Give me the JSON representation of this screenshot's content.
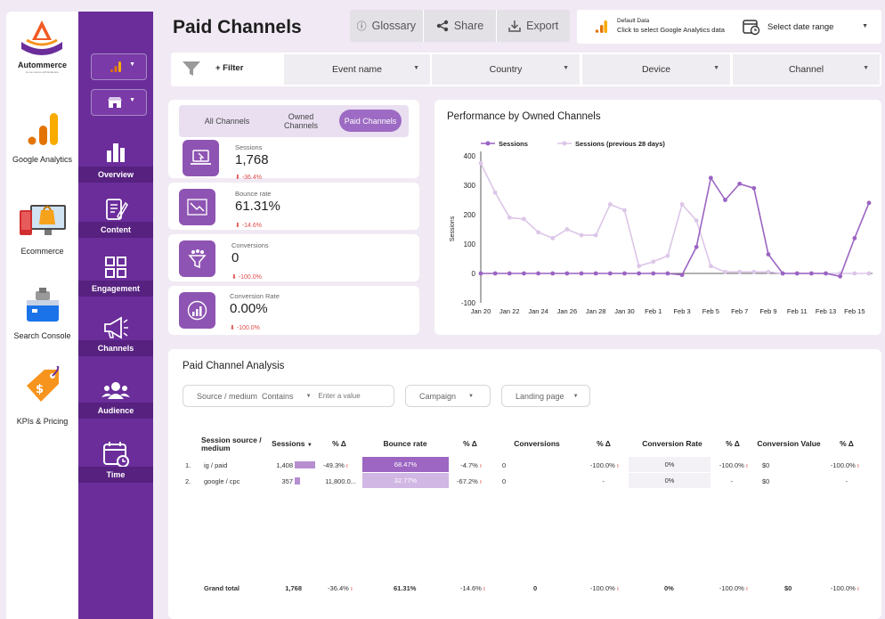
{
  "brand": {
    "name": "Autommerce",
    "tagline": "E-commerce with Evidence"
  },
  "rail": [
    {
      "label": "Google Analytics"
    },
    {
      "label": "Ecommerce"
    },
    {
      "label": "Search Console"
    },
    {
      "label": "KPIs & Pricing"
    }
  ],
  "nav": {
    "items": [
      {
        "label": "Overview"
      },
      {
        "label": "Content"
      },
      {
        "label": "Engagement"
      },
      {
        "label": "Channels"
      },
      {
        "label": "Audience"
      },
      {
        "label": "Time"
      }
    ]
  },
  "header": {
    "title": "Paid Channels",
    "glossary": "Glossary",
    "share": "Share",
    "export": "Export",
    "date_line1": "Default Data",
    "date_line2": "Click to select Google Analytics data",
    "date_range": "Select date range"
  },
  "filters": {
    "add": "+ Filter",
    "event": "Event name",
    "country": "Country",
    "device": "Device",
    "channel": "Channel"
  },
  "tabs": {
    "all": "All Channels",
    "owned": "Owned Channels",
    "paid": "Paid Channels"
  },
  "kpis": [
    {
      "label": "Sessions",
      "value": "1,768",
      "change": "-36.4%"
    },
    {
      "label": "Bounce rate",
      "value": "61.31%",
      "change": "-14.6%"
    },
    {
      "label": "Conversions",
      "value": "0",
      "change": "-100.0%"
    },
    {
      "label": "Conversion Rate",
      "value": "0.00%",
      "change": "-100.0%"
    }
  ],
  "chart_data": {
    "type": "line",
    "title": "Performance by Owned Channels",
    "xlabel": "",
    "ylabel": "Sessions",
    "ylim": [
      -100,
      400
    ],
    "yticks": [
      400,
      300,
      200,
      100,
      0,
      -100
    ],
    "tick_labels": [
      "Jan 20",
      "Jan 22",
      "Jan 24",
      "Jan 26",
      "Jan 28",
      "Jan 30",
      "Feb 1",
      "Feb 3",
      "Feb 5",
      "Feb 7",
      "Feb 9",
      "Feb 11",
      "Feb 13",
      "Feb 15"
    ],
    "legend_position": "top-left",
    "x": [
      "Jan 20",
      "Jan 21",
      "Jan 22",
      "Jan 23",
      "Jan 24",
      "Jan 25",
      "Jan 26",
      "Jan 27",
      "Jan 28",
      "Jan 29",
      "Jan 30",
      "Jan 31",
      "Feb 1",
      "Feb 2",
      "Feb 3",
      "Feb 4",
      "Feb 5",
      "Feb 6",
      "Feb 7",
      "Feb 8",
      "Feb 9",
      "Feb 10",
      "Feb 11",
      "Feb 12",
      "Feb 13",
      "Feb 14",
      "Feb 15",
      "Feb 16"
    ],
    "series": [
      {
        "name": "Sessions",
        "color": "#9b64c2",
        "values": [
          0,
          0,
          0,
          0,
          0,
          0,
          0,
          0,
          0,
          0,
          0,
          0,
          0,
          0,
          -5,
          90,
          325,
          250,
          305,
          290,
          65,
          0,
          0,
          0,
          0,
          -10,
          120,
          240
        ]
      },
      {
        "name": "Sessions (previous 28 days)",
        "color": "#dcc6e8",
        "values": [
          375,
          275,
          190,
          185,
          140,
          120,
          150,
          130,
          130,
          235,
          215,
          25,
          40,
          60,
          235,
          180,
          25,
          5,
          5,
          5,
          5,
          0,
          0,
          0,
          0,
          0,
          0,
          0
        ]
      }
    ]
  },
  "analysis": {
    "title": "Paid Channel Analysis",
    "source_label": "Source / medium",
    "contains": "Contains",
    "placeholder": "Enter a value",
    "campaign": "Campaign",
    "landing": "Landing page",
    "headers": [
      "Session source / medium",
      "Sessions",
      "% Δ",
      "Bounce rate",
      "% Δ",
      "Conversions",
      "% Δ",
      "Conversion Rate",
      "% Δ",
      "Conversion Value",
      "% Δ"
    ],
    "rows": [
      {
        "n": "1.",
        "source": "ig / paid",
        "sessions": "1,408",
        "s_chg": "-49.3%",
        "bounce": "68.47%",
        "b_chg": "-4.7%",
        "conv": "0",
        "c_chg": "-100.0%",
        "rate": "0%",
        "r_chg": "-100.0%",
        "value": "$0",
        "v_chg": "-100.0%",
        "sessions_share": 1.0
      },
      {
        "n": "2.",
        "source": "google / cpc",
        "sessions": "357",
        "s_chg": "11,800.0...",
        "bounce": "32.77%",
        "b_chg": "-67.2%",
        "conv": "0",
        "c_chg": "-",
        "rate": "0%",
        "r_chg": "-",
        "value": "$0",
        "v_chg": "-",
        "sessions_share": 0.25
      }
    ],
    "total": {
      "label": "Grand total",
      "sessions": "1,768",
      "s_chg": "-36.4%",
      "bounce": "61.31%",
      "b_chg": "-14.6%",
      "conv": "0",
      "c_chg": "-100.0%",
      "rate": "0%",
      "r_chg": "-100.0%",
      "value": "$0",
      "v_chg": "-100.0%"
    }
  }
}
